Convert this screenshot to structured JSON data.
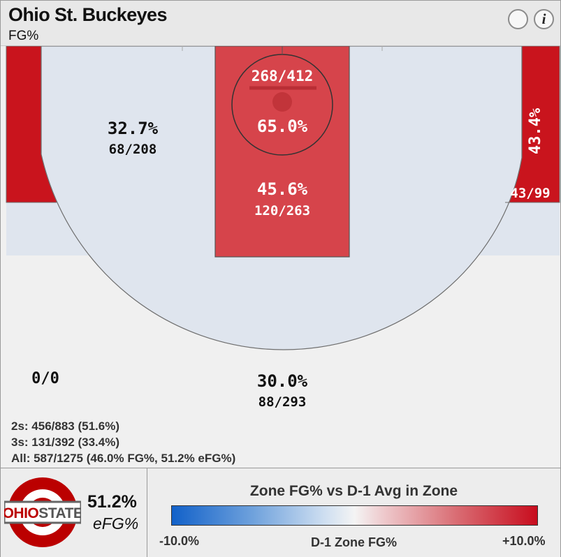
{
  "header": {
    "title": "Ohio St. Buckeyes",
    "subtitle": "FG%",
    "info_glyph": "i"
  },
  "colors": {
    "hot_zone": "#d6444b",
    "strong_zone": "#c9141d",
    "neutral_zone": "#dfe5ee",
    "blank_zone": "#f0f0f0",
    "brand_scarlet": "#bb0000",
    "brand_gray": "#666666"
  },
  "chart_data": {
    "type": "shot-chart",
    "title": "Ohio St. Buckeyes",
    "subtitle": "FG%",
    "zones": [
      {
        "id": "restricted-area",
        "pct": "65.0%",
        "made_att": "268/412"
      },
      {
        "id": "paint",
        "pct": "45.6%",
        "made_att": "120/263"
      },
      {
        "id": "midrange",
        "pct": "32.7%",
        "made_att": "68/208"
      },
      {
        "id": "corner-three-left",
        "pct": "",
        "made_att": "0/0"
      },
      {
        "id": "corner-three-right",
        "pct": "43.4%",
        "made_att": "43/99"
      },
      {
        "id": "above-break-three",
        "pct": "30.0%",
        "made_att": "88/293"
      }
    ],
    "summary": {
      "twos": "2s: 456/883 (51.6%)",
      "threes": "3s: 131/392 (33.4%)",
      "all": "All: 587/1275 (46.0% FG%, 51.2% eFG%)"
    },
    "efg_value": "51.2%",
    "efg_label": "eFG%",
    "legend": {
      "title": "Zone FG% vs D-1 Avg in Zone",
      "min_label": "-10.0%",
      "mid_label": "D-1 Zone FG%",
      "max_label": "+10.0%",
      "range": [
        -10.0,
        10.0
      ]
    }
  },
  "logo": {
    "top_text": "OHIO",
    "bottom_text": "STATE"
  }
}
